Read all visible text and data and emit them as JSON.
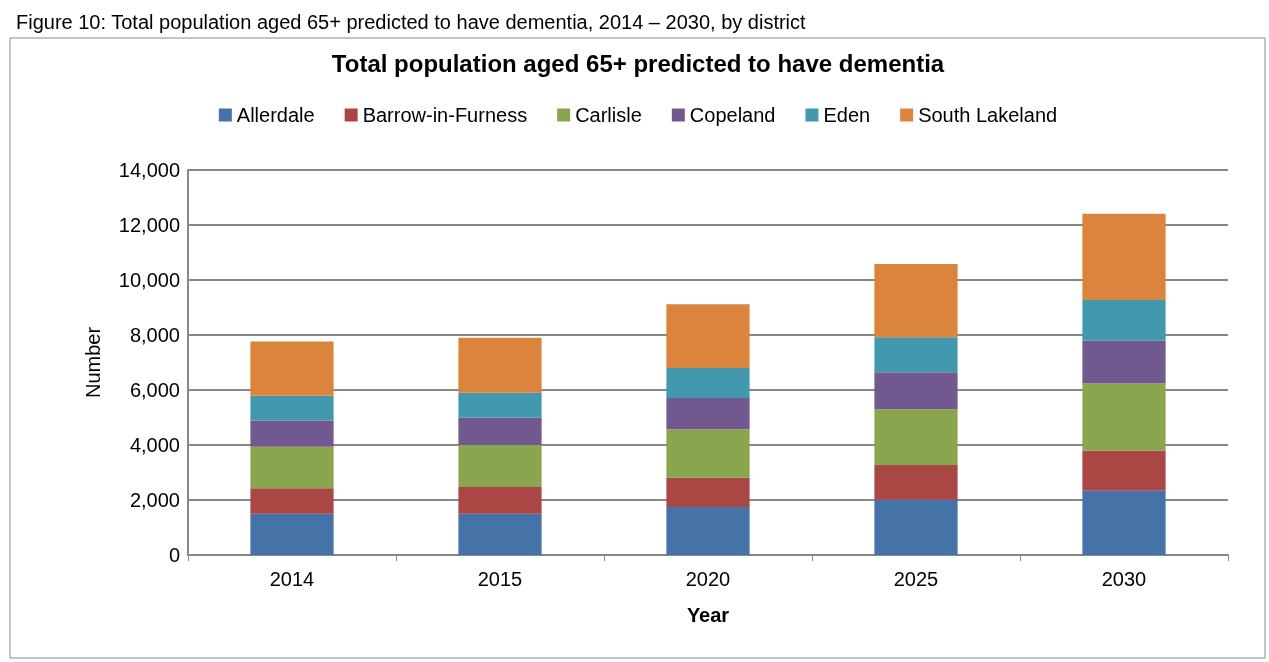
{
  "chart_data": {
    "type": "bar",
    "title": "Total population aged 65+ predicted to have dementia",
    "xlabel": "Year",
    "ylabel": "Number",
    "annotations": [
      "Figure 10: Total population aged 65+ predicted to have dementia, 2014 – 2030, by district"
    ],
    "categories": [
      "2014",
      "2015",
      "2020",
      "2025",
      "2030"
    ],
    "stacked": true,
    "series": [
      {
        "name": "Allerdale",
        "color": "#4572a7",
        "values": [
          1500,
          1500,
          1750,
          2010,
          2340
        ]
      },
      {
        "name": "Barrow-in-Furness",
        "color": "#aa4643",
        "values": [
          930,
          970,
          1060,
          1260,
          1460
        ]
      },
      {
        "name": "Carlisle",
        "color": "#89a54e",
        "values": [
          1510,
          1530,
          1760,
          2030,
          2440
        ]
      },
      {
        "name": "Copeland",
        "color": "#71588f",
        "values": [
          950,
          990,
          1140,
          1350,
          1550
        ]
      },
      {
        "name": "Eden",
        "color": "#4198af",
        "values": [
          900,
          910,
          1090,
          1270,
          1480
        ]
      },
      {
        "name": "South Lakeland",
        "color": "#db843d",
        "values": [
          1970,
          2000,
          2320,
          2660,
          3140
        ]
      }
    ],
    "ylim": [
      0,
      14000
    ],
    "yticks": [
      0,
      {
        "value": 2000,
        "label": "2,000"
      },
      {
        "value": 4000,
        "label": "4,000"
      },
      {
        "value": 6000,
        "label": "6,000"
      },
      {
        "value": 8000,
        "label": "8,000"
      },
      {
        "value": 10000,
        "label": "10,000"
      },
      {
        "value": 12000,
        "label": "12,000"
      },
      {
        "value": 14000,
        "label": "14,000"
      }
    ],
    "grid": "y",
    "legend": "top"
  }
}
